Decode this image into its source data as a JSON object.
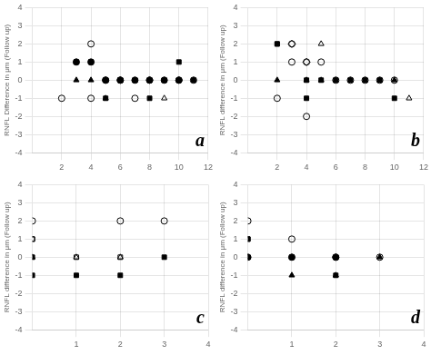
{
  "chart_data": [
    {
      "type": "scatter",
      "ylabel": "RNFL Difference in μm (Follow up)",
      "annotation": "a",
      "xlim": [
        0,
        12
      ],
      "ylim": [
        -4,
        4
      ],
      "xticks": [
        2,
        4,
        6,
        8,
        10,
        12
      ],
      "yticks": [
        -4,
        -3,
        -2,
        -1,
        0,
        1,
        2,
        3,
        4
      ],
      "grid": true,
      "color": "#000000",
      "series": [
        {
          "marker": "circle-open",
          "x": [
            2,
            4,
            5,
            6,
            7,
            8,
            10,
            11
          ],
          "values": [
            -1,
            -1,
            0,
            0,
            -1,
            0,
            0,
            0
          ]
        },
        {
          "marker": "circle",
          "x": [
            3,
            4,
            5,
            6,
            7,
            8,
            9,
            10
          ],
          "values": [
            1,
            1,
            0,
            0,
            0,
            0,
            0,
            0
          ]
        },
        {
          "marker": "square",
          "x": [
            3,
            4,
            5,
            6,
            7,
            8,
            9,
            10,
            11
          ],
          "values": [
            1,
            1,
            -1,
            0,
            0,
            -1,
            0,
            1,
            0
          ]
        },
        {
          "marker": "triangle-open",
          "x": [
            3,
            5,
            6,
            9,
            11
          ],
          "values": [
            1,
            -1,
            0,
            -1,
            0
          ]
        },
        {
          "marker": "triangle",
          "x": [
            3,
            4,
            5,
            6,
            7,
            8,
            9,
            10
          ],
          "values": [
            0,
            0,
            0,
            0,
            0,
            0,
            0,
            0
          ]
        },
        {
          "marker": "circle-open",
          "x": [
            4
          ],
          "values": [
            2
          ]
        }
      ]
    },
    {
      "type": "scatter",
      "ylabel": "RNFL difference in μm (Follow up)",
      "annotation": "b",
      "xlim": [
        0,
        12
      ],
      "ylim": [
        -4,
        4
      ],
      "xticks": [
        2,
        4,
        6,
        8,
        10,
        12
      ],
      "yticks": [
        -4,
        -3,
        -2,
        -1,
        0,
        1,
        2,
        3,
        4
      ],
      "grid": true,
      "color": "#000000",
      "series": [
        {
          "marker": "circle-open",
          "x": [
            2,
            3,
            5,
            6,
            7,
            8,
            9,
            10
          ],
          "values": [
            -1,
            2,
            1,
            0,
            0,
            0,
            0,
            0
          ]
        },
        {
          "marker": "square",
          "x": [
            2,
            4,
            5,
            6,
            7,
            8,
            9,
            10
          ],
          "values": [
            2,
            -1,
            0,
            0,
            0,
            0,
            0,
            -1
          ]
        },
        {
          "marker": "circle-open",
          "x": [
            3,
            4
          ],
          "values": [
            1,
            1
          ]
        },
        {
          "marker": "triangle",
          "x": [
            2,
            4,
            5,
            6,
            7,
            8,
            9,
            10
          ],
          "values": [
            0,
            0,
            0,
            0,
            0,
            0,
            0,
            0
          ]
        },
        {
          "marker": "triangle-open",
          "x": [
            5,
            11
          ],
          "values": [
            2,
            -1
          ]
        },
        {
          "marker": "square",
          "x": [
            2,
            4
          ],
          "values": [
            2,
            0
          ]
        },
        {
          "marker": "circle-open",
          "x": [
            4
          ],
          "values": [
            -2
          ]
        },
        {
          "marker": "diamond-open",
          "x": [
            3,
            4
          ],
          "values": [
            2,
            1
          ]
        }
      ]
    },
    {
      "type": "scatter",
      "ylabel": "RNFL difference in μm (Follow up)",
      "annotation": "c",
      "xlim": [
        0,
        4
      ],
      "ylim": [
        -4,
        4
      ],
      "xticks": [
        1,
        2,
        3,
        4
      ],
      "yticks": [
        -4,
        -3,
        -2,
        -1,
        0,
        1,
        2,
        3,
        4
      ],
      "grid": true,
      "color": "#000000",
      "series": [
        {
          "marker": "circle-open",
          "x": [
            0,
            2,
            3
          ],
          "values": [
            2,
            2,
            2
          ]
        },
        {
          "marker": "square-open",
          "x": [
            0,
            1,
            2
          ],
          "values": [
            1,
            0,
            0
          ]
        },
        {
          "marker": "square",
          "x": [
            0,
            1,
            2,
            3
          ],
          "values": [
            0,
            -1,
            -1,
            0
          ]
        },
        {
          "marker": "triangle-open",
          "x": [
            0,
            1,
            2
          ],
          "values": [
            0,
            0,
            0
          ]
        },
        {
          "marker": "square",
          "x": [
            0
          ],
          "values": [
            -1
          ]
        },
        {
          "marker": "square-open",
          "x": [
            0
          ],
          "values": [
            1
          ]
        }
      ]
    },
    {
      "type": "scatter",
      "ylabel": "RNFL difference in μm (Follow up)",
      "annotation": "d",
      "xlim": [
        0,
        4
      ],
      "ylim": [
        -4,
        4
      ],
      "xticks": [
        1,
        2,
        3,
        4
      ],
      "yticks": [
        -4,
        -3,
        -2,
        -1,
        0,
        1,
        2,
        3,
        4
      ],
      "grid": true,
      "color": "#000000",
      "series": [
        {
          "marker": "circle-open",
          "x": [
            0,
            1,
            2,
            3
          ],
          "values": [
            2,
            1,
            0,
            0
          ]
        },
        {
          "marker": "circle",
          "x": [
            0,
            1,
            2
          ],
          "values": [
            0,
            0,
            0
          ]
        },
        {
          "marker": "square",
          "x": [
            0,
            1,
            2
          ],
          "values": [
            1,
            0,
            -1
          ]
        },
        {
          "marker": "triangle",
          "x": [
            0,
            1,
            2,
            3
          ],
          "values": [
            0,
            -1,
            -1,
            0
          ]
        },
        {
          "marker": "triangle-open",
          "x": [
            0,
            1
          ],
          "values": [
            0,
            0
          ]
        },
        {
          "marker": "square-open",
          "x": [
            0
          ],
          "values": [
            1
          ]
        }
      ]
    }
  ]
}
